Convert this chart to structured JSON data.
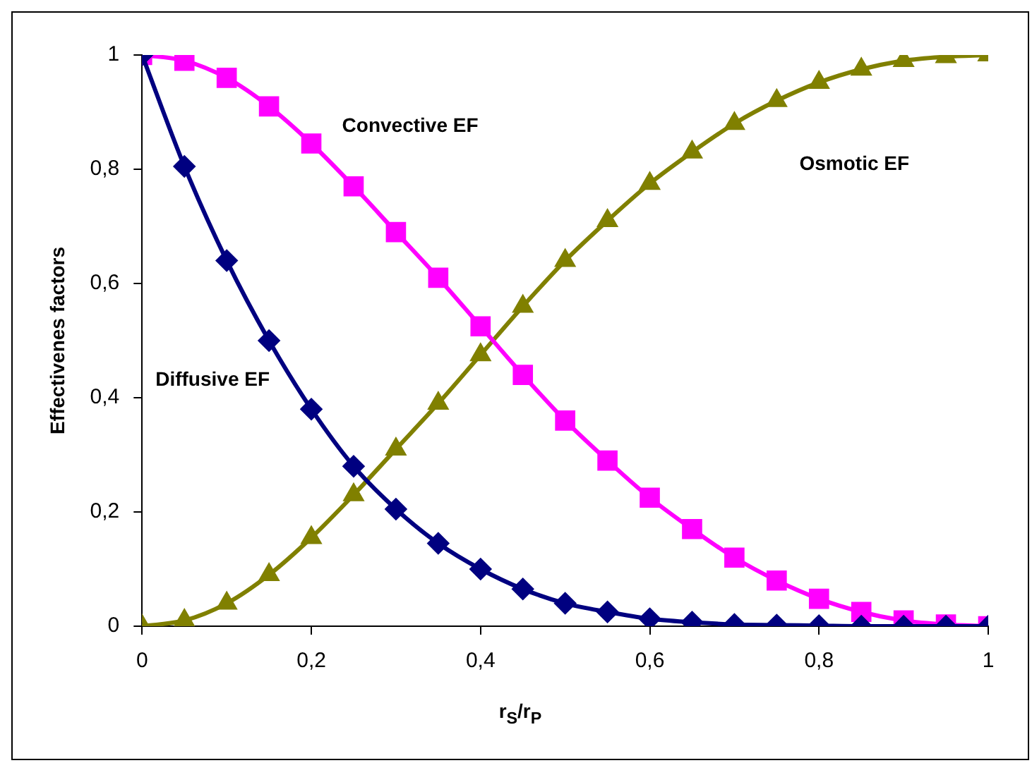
{
  "chart_data": {
    "type": "line",
    "ylabel": "Effectivenes factors",
    "xlabel": "r$_{S}$/r$_{P}$",
    "x": [
      0,
      0.05,
      0.1,
      0.15,
      0.2,
      0.25,
      0.3,
      0.35,
      0.4,
      0.45,
      0.5,
      0.55,
      0.6,
      0.65,
      0.7,
      0.75,
      0.8,
      0.85,
      0.9,
      0.95,
      1
    ],
    "xlim": [
      0,
      1
    ],
    "xticks": [
      0,
      {
        "value": 0.2,
        "label": "0,2"
      },
      {
        "value": 0.4,
        "label": "0,4"
      },
      {
        "value": 0.6,
        "label": "0,6"
      },
      {
        "value": 0.8,
        "label": "0,8"
      },
      1
    ],
    "ylim": [
      0,
      1
    ],
    "yticks": [
      0,
      {
        "value": 0.2,
        "label": "0,2"
      },
      {
        "value": 0.4,
        "label": "0,4"
      },
      {
        "value": 0.6,
        "label": "0,6"
      },
      {
        "value": 0.8,
        "label": "0,8"
      },
      1
    ],
    "grid": false,
    "legend": false,
    "series": [
      {
        "name": "Diffusive EF",
        "color": "#000080",
        "marker": "diamond",
        "values": [
          1,
          0.805,
          0.64,
          0.5,
          0.38,
          0.28,
          0.205,
          0.145,
          0.1,
          0.065,
          0.04,
          0.025,
          0.013,
          0.007,
          0.003,
          0.002,
          0.001,
          0,
          0,
          0,
          0
        ]
      },
      {
        "name": "Convective EF",
        "color": "#ff00ff",
        "marker": "square",
        "values": [
          1,
          0.99,
          0.96,
          0.91,
          0.845,
          0.77,
          0.69,
          0.61,
          0.525,
          0.44,
          0.36,
          0.29,
          0.225,
          0.17,
          0.12,
          0.08,
          0.048,
          0.025,
          0.01,
          0.003,
          0
        ]
      },
      {
        "name": "Osmotic EF",
        "color": "#808000",
        "marker": "triangle",
        "values": [
          0,
          0.01,
          0.04,
          0.09,
          0.155,
          0.23,
          0.31,
          0.39,
          0.475,
          0.56,
          0.64,
          0.71,
          0.775,
          0.83,
          0.88,
          0.92,
          0.952,
          0.975,
          0.99,
          0.997,
          1
        ]
      }
    ]
  }
}
